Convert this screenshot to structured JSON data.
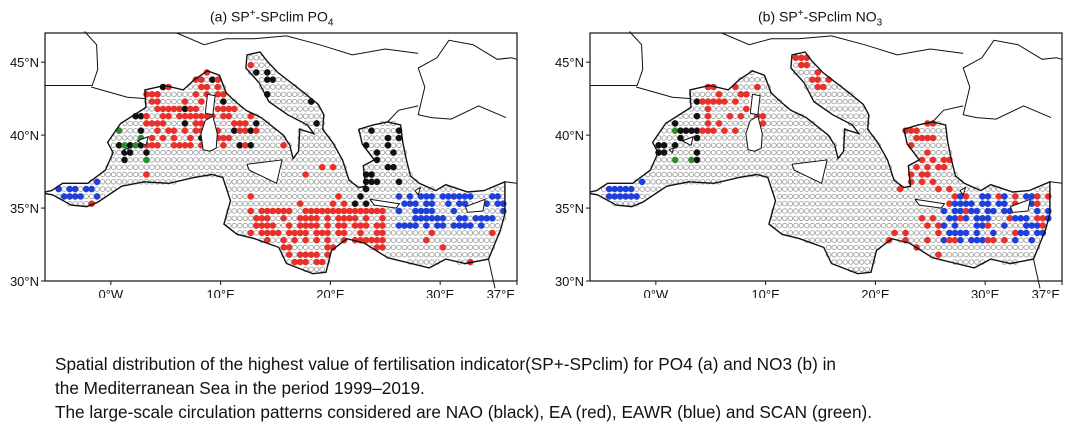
{
  "panels": [
    {
      "id": "a",
      "title_prefix": "(a) SP",
      "title_sup": "+",
      "title_mid": "-SPclim PO",
      "title_sub": "4",
      "lat_ticks": [
        "45°N",
        "40°N",
        "35°N",
        "30°N"
      ],
      "lon_ticks": [
        "0°W",
        "10°E",
        "20°E",
        "30°E",
        "37°E"
      ]
    },
    {
      "id": "b",
      "title_prefix": "(b) SP",
      "title_sup": "+",
      "title_mid": "-SPclim NO",
      "title_sub": "3",
      "lat_ticks": [
        "45°N",
        "40°N",
        "35°N",
        "30°N"
      ],
      "lon_ticks": [
        "0°W",
        "10°E",
        "20°E",
        "30°E",
        "37°E"
      ]
    }
  ],
  "legend_colors": {
    "NAO": "#111111",
    "EA": "#e8312a",
    "EAWR": "#1f3fd9",
    "SCAN": "#2e8b2e",
    "none": "#9a9a9a"
  },
  "caption": {
    "line1": "Spatial distribution of the highest value of fertilisation indicator(SP+-SPclim) for PO4 (a) and NO3 (b) in",
    "line2": "the Mediterranean Sea in the period 1999–2019.",
    "line3": "The large-scale circulation patterns considered are NAO (black), EA (red), EAWR (blue) and SCAN (green)."
  }
}
